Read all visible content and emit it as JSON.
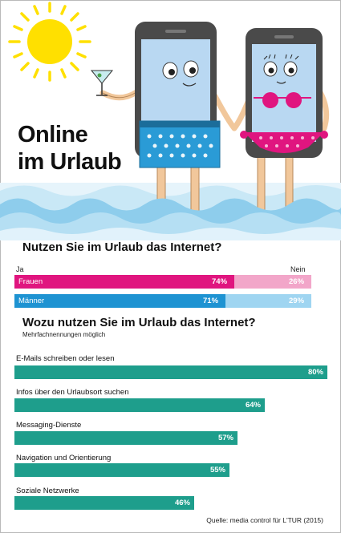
{
  "title": {
    "line1": "Online",
    "line2": "im Urlaub"
  },
  "question1": "Nutzen Sie im Urlaub das Internet?",
  "labels": {
    "yes": "Ja",
    "no": "Nein"
  },
  "question2": "Wozu nutzen Sie im Urlaub das Internet?",
  "question2_note": "Mehrfachnennungen möglich",
  "source": "Quelle: media control für L'TUR (2015)",
  "colors": {
    "frauen_ja": "#e0157f",
    "frauen_nein": "#f2a6c9",
    "maenner_ja": "#1e93d2",
    "maenner_nein": "#9fd5f1",
    "teal": "#1e9e8c",
    "sun": "#ffe000",
    "water": "#9cd3ee"
  },
  "chart_data": [
    {
      "type": "bar",
      "stacked": true,
      "orientation": "horizontal",
      "categories": [
        "Frauen",
        "Männer"
      ],
      "series": [
        {
          "name": "Ja",
          "values": [
            74,
            71
          ],
          "labels": [
            "74%",
            "71%"
          ]
        },
        {
          "name": "Nein",
          "values": [
            26,
            29
          ],
          "labels": [
            "26%",
            "29%"
          ]
        }
      ]
    },
    {
      "type": "bar",
      "orientation": "horizontal",
      "categories": [
        "E-Mails schreiben oder lesen",
        "Infos über den Urlaubsort suchen",
        "Messaging-Dienste",
        "Navigation und Orientierung",
        "Soziale Netzwerke"
      ],
      "values": [
        80,
        64,
        57,
        55,
        46
      ],
      "labels": [
        "80%",
        "64%",
        "57%",
        "55%",
        "46%"
      ]
    }
  ]
}
